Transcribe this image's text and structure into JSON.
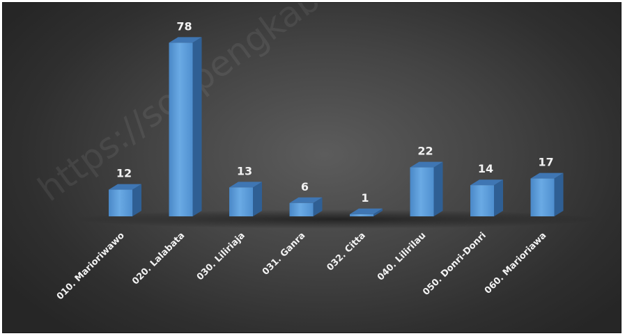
{
  "chart_data": {
    "type": "bar",
    "categories": [
      "010. Marioriwawo",
      "020. Lalabata",
      "030. Liliriaja",
      "031. Ganra",
      "032. Citta",
      "040. Lilirilau",
      "050. Donri-Donri",
      "060. Marioriawa"
    ],
    "values": [
      12,
      78,
      13,
      6,
      1,
      22,
      14,
      17
    ],
    "title": "",
    "xlabel": "",
    "ylabel": "",
    "ylim": [
      0,
      80
    ],
    "grid": false,
    "legend": "none",
    "bar_color": "#5b9bd5",
    "background_color": "#3a3a3a",
    "label_color": "#f2f2f2"
  },
  "watermark": "https://soppengkab.bps.go.id"
}
